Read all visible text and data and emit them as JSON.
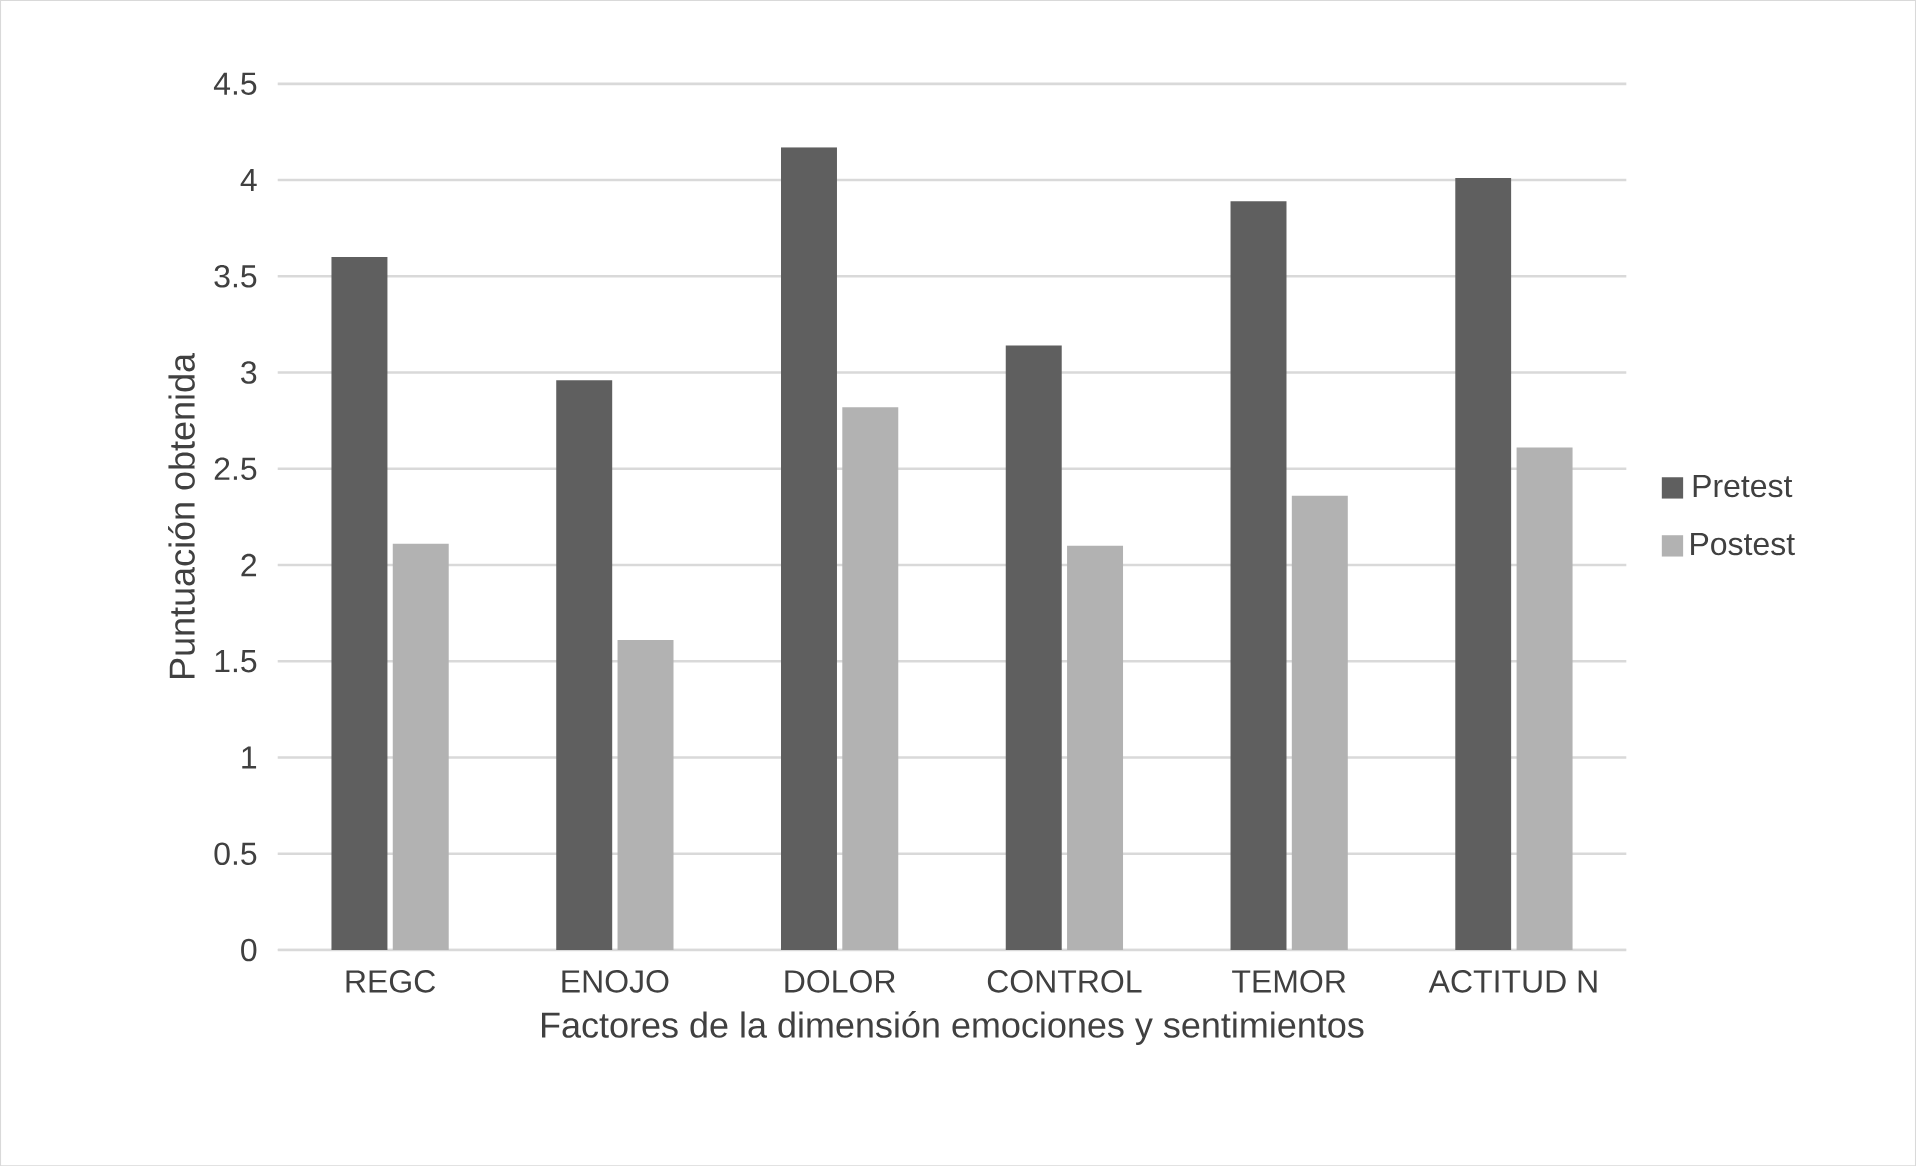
{
  "chart_data": {
    "type": "bar",
    "xlabel": "Factores de la dimensión emociones y sentimientos",
    "ylabel": "Puntuación obtenida",
    "categories": [
      "REGC",
      "ENOJO",
      "DOLOR",
      "CONTROL",
      "TEMOR",
      "ACTITUD N"
    ],
    "series": [
      {
        "name": "Pretest",
        "color": "#5f5f5f",
        "values": [
          3.6,
          2.96,
          4.17,
          3.14,
          3.89,
          4.01
        ]
      },
      {
        "name": "Postest",
        "color": "#b2b2b2",
        "values": [
          2.11,
          1.61,
          2.82,
          2.1,
          2.36,
          2.61
        ]
      }
    ],
    "ylim": [
      0,
      4.5
    ],
    "yticks": [
      0,
      0.5,
      1,
      1.5,
      2,
      2.5,
      3,
      3.5,
      4,
      4.5
    ],
    "grid": "y",
    "legend": "right"
  }
}
